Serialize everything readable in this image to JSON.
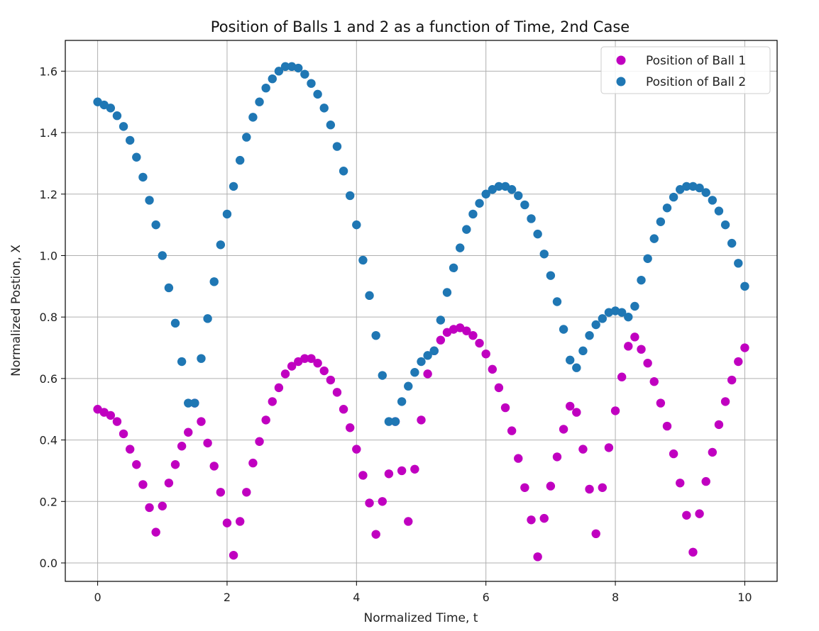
{
  "chart_data": {
    "type": "scatter",
    "title": "Position of Balls 1 and 2 as a function of Time, 2nd Case",
    "xlabel": "Normalized Time, t",
    "ylabel": "Normalized Postion, X",
    "xlim": [
      -0.5,
      10.5
    ],
    "ylim": [
      -0.06,
      1.7
    ],
    "xticks": [
      0,
      2,
      4,
      6,
      8,
      10
    ],
    "yticks": [
      0.0,
      0.2,
      0.4,
      0.6,
      0.8,
      1.0,
      1.2,
      1.4,
      1.6
    ],
    "grid": true,
    "legend_position": "top-right",
    "series": [
      {
        "name": "Position of Ball 1",
        "color": "#c000c0",
        "x": [
          0.0,
          0.1,
          0.2,
          0.3,
          0.4,
          0.5,
          0.6,
          0.7,
          0.8,
          0.9,
          1.0,
          1.1,
          1.2,
          1.3,
          1.4,
          1.5,
          1.6,
          1.7,
          1.8,
          1.9,
          2.0,
          2.1,
          2.2,
          2.3,
          2.4,
          2.5,
          2.6,
          2.7,
          2.8,
          2.9,
          3.0,
          3.1,
          3.2,
          3.3,
          3.4,
          3.5,
          3.6,
          3.7,
          3.8,
          3.9,
          4.0,
          4.1,
          4.2,
          4.3,
          4.4,
          4.5,
          4.6,
          4.7,
          4.8,
          4.9,
          5.0,
          5.1,
          5.2,
          5.3,
          5.4,
          5.5,
          5.6,
          5.7,
          5.8,
          5.9,
          6.0,
          6.1,
          6.2,
          6.3,
          6.4,
          6.5,
          6.6,
          6.7,
          6.8,
          6.9,
          7.0,
          7.1,
          7.2,
          7.3,
          7.4,
          7.5,
          7.6,
          7.7,
          7.8,
          7.9,
          8.0,
          8.1,
          8.2,
          8.3,
          8.4,
          8.5,
          8.6,
          8.7,
          8.8,
          8.9,
          9.0,
          9.1,
          9.2,
          9.3,
          9.4,
          9.5,
          9.6,
          9.7,
          9.8,
          9.9,
          10.0
        ],
        "y": [
          0.5,
          0.49,
          0.48,
          0.46,
          0.42,
          0.37,
          0.32,
          0.255,
          0.18,
          0.1,
          0.185,
          0.26,
          0.32,
          0.38,
          0.425,
          0.52,
          0.46,
          0.39,
          0.315,
          0.23,
          0.13,
          0.025,
          0.135,
          0.23,
          0.325,
          0.395,
          0.465,
          0.525,
          0.57,
          0.615,
          0.64,
          0.655,
          0.665,
          0.665,
          0.65,
          0.625,
          0.595,
          0.555,
          0.5,
          0.44,
          0.37,
          0.285,
          0.195,
          0.093,
          0.2,
          0.29,
          0.46,
          0.3,
          0.135,
          0.305,
          0.465,
          0.615,
          0.69,
          0.725,
          0.75,
          0.76,
          0.765,
          0.755,
          0.74,
          0.715,
          0.68,
          0.63,
          0.57,
          0.505,
          0.43,
          0.34,
          0.245,
          0.14,
          0.02,
          0.145,
          0.25,
          0.345,
          0.435,
          0.51,
          0.49,
          0.37,
          0.24,
          0.095,
          0.245,
          0.375,
          0.495,
          0.605,
          0.705,
          0.735,
          0.695,
          0.65,
          0.59,
          0.52,
          0.445,
          0.355,
          0.26,
          0.155,
          0.035,
          0.16,
          0.265,
          0.36,
          0.45,
          0.525,
          0.595,
          0.655,
          0.7
        ]
      },
      {
        "name": "Position of Ball 2",
        "color": "#1f77b4",
        "x": [
          0.0,
          0.1,
          0.2,
          0.3,
          0.4,
          0.5,
          0.6,
          0.7,
          0.8,
          0.9,
          1.0,
          1.1,
          1.2,
          1.3,
          1.4,
          1.5,
          1.6,
          1.7,
          1.8,
          1.9,
          2.0,
          2.1,
          2.2,
          2.3,
          2.4,
          2.5,
          2.6,
          2.7,
          2.8,
          2.9,
          3.0,
          3.1,
          3.2,
          3.3,
          3.4,
          3.5,
          3.6,
          3.7,
          3.8,
          3.9,
          4.0,
          4.1,
          4.2,
          4.3,
          4.4,
          4.5,
          4.6,
          4.7,
          4.8,
          4.9,
          5.0,
          5.1,
          5.2,
          5.3,
          5.4,
          5.5,
          5.6,
          5.7,
          5.8,
          5.9,
          6.0,
          6.1,
          6.2,
          6.3,
          6.4,
          6.5,
          6.6,
          6.7,
          6.8,
          6.9,
          7.0,
          7.1,
          7.2,
          7.3,
          7.4,
          7.5,
          7.6,
          7.7,
          7.8,
          7.9,
          8.0,
          8.1,
          8.2,
          8.3,
          8.4,
          8.5,
          8.6,
          8.7,
          8.8,
          8.9,
          9.0,
          9.1,
          9.2,
          9.3,
          9.4,
          9.5,
          9.6,
          9.7,
          9.8,
          9.9,
          10.0
        ],
        "y": [
          1.5,
          1.49,
          1.48,
          1.455,
          1.42,
          1.375,
          1.32,
          1.255,
          1.18,
          1.1,
          1.0,
          0.895,
          0.78,
          0.655,
          0.52,
          0.52,
          0.665,
          0.795,
          0.915,
          1.035,
          1.135,
          1.225,
          1.31,
          1.385,
          1.45,
          1.5,
          1.545,
          1.575,
          1.6,
          1.615,
          1.615,
          1.61,
          1.59,
          1.56,
          1.525,
          1.48,
          1.425,
          1.355,
          1.275,
          1.195,
          1.1,
          0.985,
          0.87,
          0.74,
          0.61,
          0.46,
          0.46,
          0.525,
          0.575,
          0.62,
          0.655,
          0.675,
          0.69,
          0.79,
          0.88,
          0.96,
          1.025,
          1.085,
          1.135,
          1.17,
          1.2,
          1.215,
          1.225,
          1.225,
          1.215,
          1.195,
          1.165,
          1.12,
          1.07,
          1.005,
          0.935,
          0.85,
          0.76,
          0.66,
          0.635,
          0.69,
          0.74,
          0.775,
          0.795,
          0.815,
          0.82,
          0.815,
          0.8,
          0.835,
          0.92,
          0.99,
          1.055,
          1.11,
          1.155,
          1.19,
          1.215,
          1.225,
          1.225,
          1.22,
          1.205,
          1.18,
          1.145,
          1.1,
          1.04,
          0.975,
          0.9
        ]
      }
    ]
  }
}
